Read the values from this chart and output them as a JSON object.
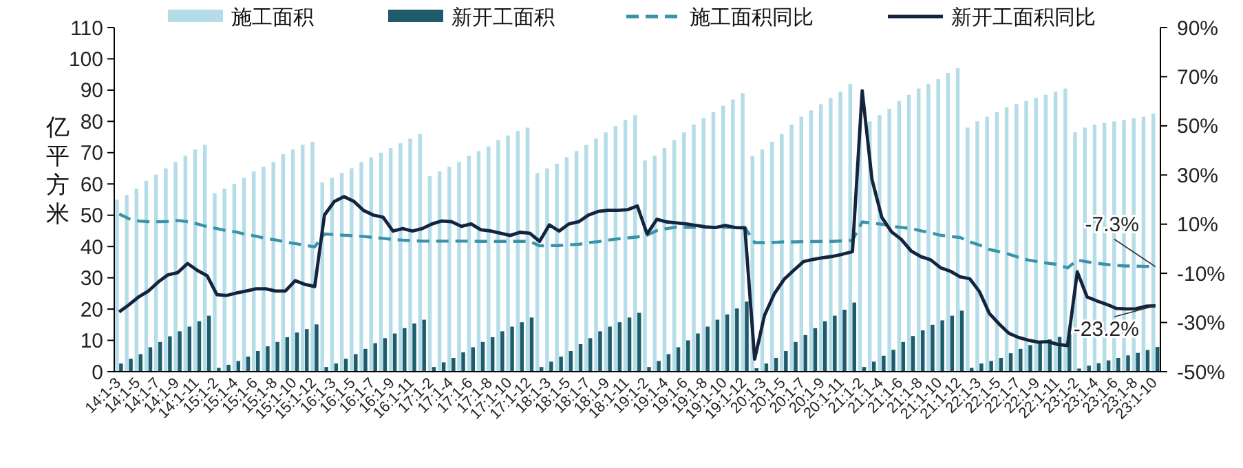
{
  "chart_data": {
    "type": "bar",
    "ylabel": "亿平方米",
    "legend": "top",
    "categories": [
      "14:1-3",
      null,
      "14:1-5",
      null,
      "14:1-7",
      null,
      "14:1-9",
      null,
      "14:1-11",
      null,
      "15:1-2",
      null,
      "15:1-4",
      null,
      "15:1-6",
      null,
      "15:1-8",
      null,
      "15:1-10",
      null,
      "15:1-12",
      null,
      "16:1-3",
      null,
      "16:1-5",
      null,
      "16:1-7",
      null,
      "16:1-9",
      null,
      "16:1-11",
      null,
      "17:1-2",
      null,
      "17:1-4",
      null,
      "17:1-6",
      null,
      "17:1-8",
      null,
      "17:1-10",
      null,
      "17:1-12",
      null,
      "18:1-3",
      null,
      "18:1-5",
      null,
      "18:1-7",
      null,
      "18:1-9",
      null,
      "18:1-11",
      null,
      "19:1-2",
      null,
      "19:1-4",
      null,
      "19:1-6",
      null,
      "19:1-8",
      null,
      "19:1-10",
      null,
      "19:1-12",
      null,
      "20:1-3",
      null,
      "20:1-5",
      null,
      "20:1-7",
      null,
      "20:1-9",
      null,
      "20:1-11",
      null,
      "21:1-2",
      null,
      "21:1-4",
      null,
      "21:1-6",
      null,
      "21:1-8",
      null,
      "21:1-10",
      null,
      "21:1-12",
      null,
      "22:1-3",
      null,
      "22:1-5",
      null,
      "22:1-7",
      null,
      "22:1-9",
      null,
      "22:1-11",
      null,
      "23:1-2",
      null,
      "23:1-4",
      null,
      "23:1-6",
      null,
      "23:1-8",
      null,
      "23:1-10"
    ],
    "ylim": [
      0,
      110
    ],
    "yticks": [
      0,
      10,
      20,
      30,
      40,
      50,
      60,
      70,
      80,
      90,
      100,
      110
    ],
    "y2lim": [
      -50,
      90
    ],
    "y2ticks": [
      {
        "value": -50,
        "label": "-50%"
      },
      {
        "value": -30,
        "label": "-30%"
      },
      {
        "value": -10,
        "label": "-10%"
      },
      {
        "value": 10,
        "label": "10%"
      },
      {
        "value": 30,
        "label": "30%"
      },
      {
        "value": 50,
        "label": "50%"
      },
      {
        "value": 70,
        "label": "70%"
      },
      {
        "value": 90,
        "label": "90%"
      }
    ],
    "series": [
      {
        "name": "施工面积",
        "color": "#b5dde8",
        "values": [
          55,
          56.5,
          58.5,
          61,
          63,
          65,
          67,
          69,
          71,
          72.5,
          57,
          58.5,
          60,
          62,
          64,
          65.5,
          67,
          69.5,
          71,
          72.5,
          73.5,
          60.5,
          62,
          63.5,
          65,
          67,
          68.5,
          70,
          71.5,
          73,
          74.5,
          76,
          62.5,
          64,
          65.5,
          67,
          69,
          70.5,
          72,
          74,
          75.5,
          77,
          78,
          63.5,
          65,
          66.5,
          68.5,
          70.5,
          72.5,
          74.5,
          76.5,
          78.5,
          80.5,
          82,
          67.5,
          69,
          71.5,
          74,
          76.5,
          79,
          81,
          83,
          85,
          87,
          89,
          69,
          71,
          73.5,
          76,
          79,
          81.5,
          83.5,
          85.5,
          87.5,
          89.5,
          92,
          78,
          80,
          82,
          84,
          86.5,
          88.5,
          90.5,
          92,
          93.5,
          95.5,
          97,
          78,
          80,
          81.5,
          83,
          84.5,
          85.5,
          86.5,
          87.5,
          88.5,
          89.5,
          90.5,
          76.5,
          78,
          79,
          79.5,
          80,
          80.5,
          81,
          81.5,
          82.5
        ]
      },
      {
        "name": "新开工面积",
        "color": "#1f5c6b",
        "values": [
          2.6,
          4.1,
          5.6,
          7.8,
          9.5,
          11.3,
          12.9,
          14.4,
          16.1,
          17.9,
          1.2,
          2.2,
          3.4,
          4.8,
          6.6,
          8.1,
          9.5,
          11,
          12.5,
          13.6,
          15.1,
          1.5,
          2.6,
          4.1,
          5.6,
          7.3,
          9.1,
          10.7,
          12.2,
          13.9,
          15.4,
          16.6,
          1.5,
          3,
          4.4,
          6.2,
          7.8,
          9.5,
          11,
          12.9,
          14.4,
          15.8,
          17.3,
          1.5,
          3.2,
          4.8,
          6.6,
          8.8,
          10.7,
          12.9,
          14.4,
          15.8,
          17.3,
          18.8,
          1.5,
          3.4,
          5.6,
          7.8,
          10,
          12.2,
          14.4,
          16.6,
          18.3,
          20.2,
          22.4,
          1.1,
          2.6,
          4.4,
          6.6,
          9.5,
          11.7,
          13.9,
          16.1,
          17.9,
          19.8,
          22.1,
          1.5,
          3.2,
          5.1,
          7,
          9.5,
          11.4,
          13.2,
          15,
          16.4,
          17.9,
          19.5,
          1.2,
          2.6,
          3.4,
          4.4,
          5.9,
          7.3,
          8.5,
          9.5,
          10.3,
          11.1,
          12,
          1,
          1.9,
          2.7,
          3.6,
          4.4,
          5.2,
          6,
          6.9,
          7.9
        ]
      },
      {
        "name": "施工面积同比",
        "type": "line",
        "axis": "y2",
        "line_style": "dashed",
        "color": "#3a93a8",
        "values": [
          14.1,
          12.2,
          11.3,
          11,
          11,
          11.1,
          11.5,
          11,
          10.1,
          9,
          8.2,
          7.3,
          6.8,
          5.8,
          5.1,
          4.2,
          3.6,
          2.7,
          2.1,
          1.4,
          0.8,
          6,
          5.8,
          5.5,
          5.3,
          5,
          4.6,
          4.2,
          3.8,
          3.5,
          3.3,
          3.1,
          3.1,
          3.1,
          3.1,
          3.1,
          3.1,
          3,
          3,
          3,
          3,
          3,
          3,
          1.2,
          1.3,
          1.3,
          1.6,
          1.8,
          2.5,
          2.9,
          3.5,
          4,
          4.4,
          4.8,
          5.5,
          7.4,
          8.2,
          8.8,
          8.7,
          8.7,
          8.7,
          8.7,
          8.7,
          8.7,
          8.7,
          2.5,
          2.5,
          2.6,
          2.8,
          2.8,
          2.9,
          2.9,
          3,
          3,
          3.2,
          3.4,
          10.9,
          10.4,
          10,
          9.1,
          8.7,
          8.2,
          7.3,
          6.5,
          5.5,
          5,
          4.6,
          2.8,
          1.5,
          -0.3,
          -1.2,
          -2.2,
          -3.5,
          -4.6,
          -5.3,
          -5.9,
          -6.4,
          -7.8,
          -4.6,
          -5.3,
          -5.9,
          -6.4,
          -6.8,
          -7,
          -7.1,
          -7.2,
          -7.3
        ]
      },
      {
        "name": "新开工面积同比",
        "type": "line",
        "axis": "y2",
        "line_style": "solid",
        "color": "#14243f",
        "values": [
          -25.7,
          -22.8,
          -19.6,
          -17.2,
          -13.5,
          -10.6,
          -9.7,
          -6,
          -8.8,
          -11,
          -18.7,
          -19,
          -18,
          -17.2,
          -16.3,
          -16.3,
          -17.2,
          -17.2,
          -13,
          -14.5,
          -15.4,
          13.7,
          19.2,
          21.2,
          19.3,
          15.6,
          13.7,
          12.8,
          7.2,
          8.2,
          7.2,
          8.2,
          10.1,
          11.3,
          11,
          9.1,
          10.1,
          7.7,
          7.2,
          6.3,
          5.4,
          6.7,
          6.3,
          3,
          9.7,
          7.2,
          10.1,
          11,
          13.7,
          15.2,
          15.6,
          15.6,
          15.9,
          17.4,
          6,
          12,
          10.9,
          10.5,
          10.1,
          9.5,
          8.9,
          8.6,
          9.5,
          8.6,
          8.5,
          -44.9,
          -27.2,
          -18.4,
          -12.5,
          -8.8,
          -5.2,
          -4.3,
          -3.6,
          -3.1,
          -2.2,
          -1.2,
          64.3,
          28.2,
          12.8,
          6.9,
          3.8,
          -0.9,
          -3.2,
          -4.5,
          -7.7,
          -9.1,
          -11.4,
          -12.2,
          -17.5,
          -26.3,
          -30.6,
          -34.4,
          -36.1,
          -37.2,
          -38,
          -37.8,
          -38.9,
          -39.4,
          -9.4,
          -19.6,
          -21.2,
          -22.6,
          -24.3,
          -24.5,
          -24.4,
          -23.4,
          -23.2
        ]
      }
    ],
    "annotations": [
      "-7.3%",
      "-23.2%"
    ]
  }
}
